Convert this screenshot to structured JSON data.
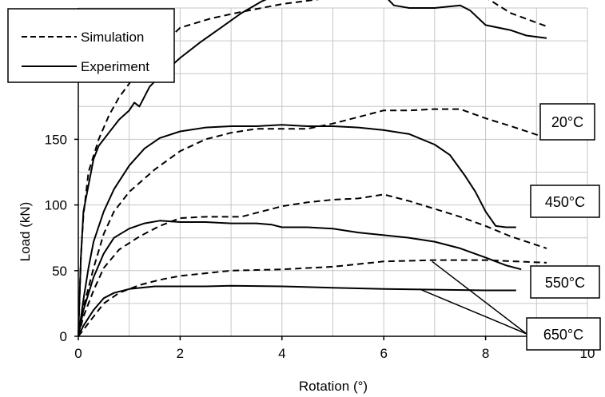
{
  "chart_data": {
    "type": "line",
    "title": "",
    "xlabel": "Rotation (°)",
    "ylabel": "Load (kN)",
    "xlim": [
      0,
      10
    ],
    "ylim": [
      0,
      250
    ],
    "x_ticks": [
      "0",
      "2",
      "4",
      "6",
      "8",
      "10"
    ],
    "y_ticks": [
      "0",
      "50",
      "100",
      "150",
      "200"
    ],
    "grid": true,
    "legend_position": "top-left",
    "legend": [
      {
        "label": "Simulation",
        "style": "dashed"
      },
      {
        "label": "Experiment",
        "style": "solid"
      }
    ],
    "annotations": [
      "20°C",
      "450°C",
      "550°C",
      "650°C"
    ],
    "series": [
      {
        "temperature": "20°C",
        "style": "dashed",
        "points": [
          [
            0,
            0
          ],
          [
            0.05,
            60
          ],
          [
            0.1,
            92
          ],
          [
            0.2,
            125
          ],
          [
            0.4,
            150
          ],
          [
            0.6,
            168
          ],
          [
            0.8,
            182
          ],
          [
            1.2,
            203
          ],
          [
            1.6,
            220
          ],
          [
            2,
            235
          ],
          [
            2.6,
            242
          ],
          [
            3.2,
            247
          ],
          [
            4,
            253
          ],
          [
            5,
            258
          ],
          [
            6,
            264
          ],
          [
            7,
            270
          ],
          [
            7.5,
            274
          ],
          [
            8,
            258
          ],
          [
            8.5,
            246
          ],
          [
            9.2,
            236
          ]
        ]
      },
      {
        "temperature": "20°C",
        "style": "solid",
        "points": [
          [
            0,
            0
          ],
          [
            0.05,
            60
          ],
          [
            0.1,
            95
          ],
          [
            0.2,
            115
          ],
          [
            0.3,
            135
          ],
          [
            0.4,
            145
          ],
          [
            0.6,
            155
          ],
          [
            0.8,
            165
          ],
          [
            1,
            172
          ],
          [
            1.1,
            178
          ],
          [
            1.2,
            175
          ],
          [
            1.4,
            190
          ],
          [
            1.6,
            198
          ],
          [
            1.8,
            205
          ],
          [
            2,
            212
          ],
          [
            2.4,
            224
          ],
          [
            2.8,
            235
          ],
          [
            3.2,
            246
          ],
          [
            3.6,
            255
          ],
          [
            4,
            262
          ],
          [
            4.3,
            267
          ],
          [
            4.4,
            270
          ],
          [
            4.5,
            265
          ],
          [
            4.7,
            267
          ],
          [
            5,
            265
          ],
          [
            5.3,
            269
          ],
          [
            5.5,
            258
          ],
          [
            6,
            260
          ],
          [
            6.2,
            252
          ],
          [
            6.5,
            250
          ],
          [
            7,
            250
          ],
          [
            7.5,
            252
          ],
          [
            7.7,
            248
          ],
          [
            8,
            237
          ],
          [
            8.5,
            233
          ],
          [
            8.8,
            229
          ],
          [
            9.2,
            227
          ]
        ]
      },
      {
        "temperature": "450°C",
        "style": "dashed",
        "points": [
          [
            0,
            0
          ],
          [
            0.1,
            22
          ],
          [
            0.3,
            52
          ],
          [
            0.5,
            78
          ],
          [
            0.7,
            95
          ],
          [
            1,
            110
          ],
          [
            1.5,
            127
          ],
          [
            2,
            141
          ],
          [
            2.5,
            150
          ],
          [
            3,
            155
          ],
          [
            3.5,
            158
          ],
          [
            4,
            158
          ],
          [
            4.5,
            158
          ],
          [
            5,
            162
          ],
          [
            5.5,
            167
          ],
          [
            6,
            172
          ],
          [
            6.5,
            172
          ],
          [
            7,
            173
          ],
          [
            7.5,
            173
          ],
          [
            8,
            166
          ],
          [
            8.5,
            160
          ],
          [
            9.2,
            151
          ]
        ]
      },
      {
        "temperature": "450°C",
        "style": "solid",
        "points": [
          [
            0,
            0
          ],
          [
            0.1,
            28
          ],
          [
            0.2,
            52
          ],
          [
            0.3,
            72
          ],
          [
            0.5,
            95
          ],
          [
            0.7,
            112
          ],
          [
            1,
            130
          ],
          [
            1.3,
            143
          ],
          [
            1.6,
            151
          ],
          [
            2,
            156
          ],
          [
            2.5,
            159
          ],
          [
            3,
            160
          ],
          [
            3.5,
            160
          ],
          [
            4,
            161
          ],
          [
            4.5,
            160
          ],
          [
            5,
            160
          ],
          [
            5.5,
            159
          ],
          [
            6,
            157
          ],
          [
            6.5,
            154
          ],
          [
            7,
            146
          ],
          [
            7.3,
            138
          ],
          [
            7.6,
            122
          ],
          [
            7.8,
            110
          ],
          [
            8,
            95
          ],
          [
            8.2,
            84
          ],
          [
            8.4,
            83
          ],
          [
            8.6,
            83
          ]
        ]
      },
      {
        "temperature": "550°C",
        "style": "dashed",
        "points": [
          [
            0,
            0
          ],
          [
            0.1,
            15
          ],
          [
            0.3,
            35
          ],
          [
            0.5,
            52
          ],
          [
            0.8,
            66
          ],
          [
            1.2,
            76
          ],
          [
            1.6,
            84
          ],
          [
            2,
            90
          ],
          [
            2.5,
            91
          ],
          [
            3.2,
            91
          ],
          [
            3.6,
            95
          ],
          [
            4,
            99
          ],
          [
            4.5,
            102
          ],
          [
            5,
            104
          ],
          [
            5.5,
            105
          ],
          [
            6,
            108
          ],
          [
            6.5,
            103
          ],
          [
            7,
            97
          ],
          [
            7.5,
            91
          ],
          [
            8,
            84
          ],
          [
            8.5,
            76
          ],
          [
            9.2,
            67
          ]
        ]
      },
      {
        "temperature": "550°C",
        "style": "solid",
        "points": [
          [
            0,
            0
          ],
          [
            0.1,
            20
          ],
          [
            0.3,
            45
          ],
          [
            0.5,
            63
          ],
          [
            0.7,
            75
          ],
          [
            1,
            82
          ],
          [
            1.3,
            86
          ],
          [
            1.6,
            88
          ],
          [
            2,
            87
          ],
          [
            2.5,
            87
          ],
          [
            3,
            86
          ],
          [
            3.5,
            86
          ],
          [
            3.8,
            85
          ],
          [
            4,
            83
          ],
          [
            4.5,
            83
          ],
          [
            5,
            82
          ],
          [
            5.5,
            79
          ],
          [
            6,
            77
          ],
          [
            6.5,
            75
          ],
          [
            7,
            72
          ],
          [
            7.5,
            67
          ],
          [
            8,
            60
          ],
          [
            8.4,
            54
          ],
          [
            8.7,
            51
          ]
        ]
      },
      {
        "temperature": "650°C",
        "style": "dashed",
        "points": [
          [
            0,
            0
          ],
          [
            0.1,
            5
          ],
          [
            0.3,
            15
          ],
          [
            0.5,
            25
          ],
          [
            0.8,
            33
          ],
          [
            1.2,
            39
          ],
          [
            1.6,
            43
          ],
          [
            2,
            46
          ],
          [
            2.5,
            48
          ],
          [
            3,
            50
          ],
          [
            4,
            51
          ],
          [
            5,
            53
          ],
          [
            6,
            57
          ],
          [
            7,
            58
          ],
          [
            8,
            58
          ],
          [
            9.2,
            56
          ]
        ]
      },
      {
        "temperature": "650°C",
        "style": "solid",
        "points": [
          [
            0,
            0
          ],
          [
            0.1,
            8
          ],
          [
            0.3,
            20
          ],
          [
            0.5,
            29
          ],
          [
            0.7,
            33
          ],
          [
            1,
            36
          ],
          [
            1.5,
            38
          ],
          [
            2,
            38
          ],
          [
            2.5,
            38
          ],
          [
            3,
            38.5
          ],
          [
            4,
            38
          ],
          [
            5,
            37
          ],
          [
            6,
            36
          ],
          [
            7,
            35.5
          ],
          [
            8,
            35
          ],
          [
            8.6,
            35
          ]
        ]
      }
    ]
  }
}
